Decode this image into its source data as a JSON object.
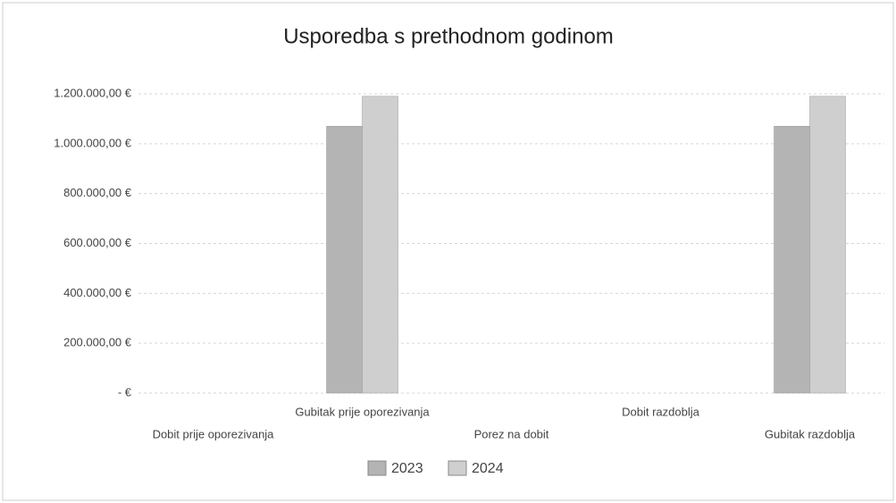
{
  "chart_data": {
    "type": "bar",
    "title": "Usporedba s prethodnom godinom",
    "categories": [
      "Dobit prije oporezivanja",
      "Gubitak prije oporezivanja",
      "Porez na dobit",
      "Dobit razdoblja",
      "Gubitak razdoblja"
    ],
    "series": [
      {
        "name": "2023",
        "color": "#b4b4b4",
        "values": [
          0,
          1070000,
          0,
          0,
          1070000
        ]
      },
      {
        "name": "2024",
        "color": "#cfcfcf",
        "values": [
          0,
          1190000,
          0,
          0,
          1190000
        ]
      }
    ],
    "ylim": [
      0,
      1200000
    ],
    "yticks": [
      {
        "value": 0,
        "label": "- €"
      },
      {
        "value": 200000,
        "label": "200.000,00 €"
      },
      {
        "value": 400000,
        "label": "400.000,00 €"
      },
      {
        "value": 600000,
        "label": "600.000,00 €"
      },
      {
        "value": 800000,
        "label": "800.000,00 €"
      },
      {
        "value": 1000000,
        "label": "1.000.000,00 €"
      },
      {
        "value": 1200000,
        "label": "1.200.000,00 €"
      }
    ],
    "grid": true,
    "legend": "bottom"
  }
}
